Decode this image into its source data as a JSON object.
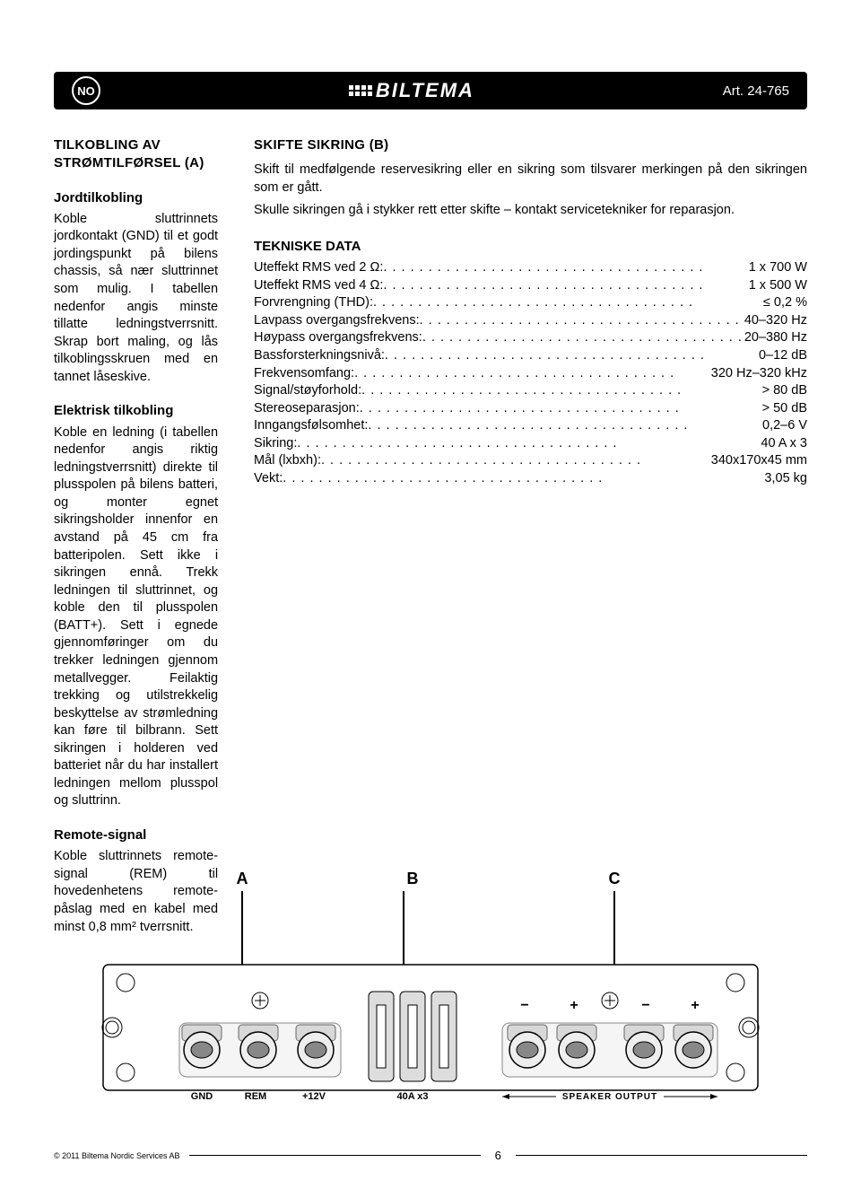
{
  "header": {
    "lang": "NO",
    "brand": "BILTEMA",
    "art": "Art. 24-765"
  },
  "left": {
    "title": "TILKOBLING AV STRØMTILFØRSEL (A)",
    "s1_heading": "Jordtilkobling",
    "s1_text": "Koble sluttrinnets jordkontakt (GND) til et godt jordingspunkt på bilens chassis, så nær sluttrinnet som mulig. I tabellen nedenfor angis minste tillatte ledningstverrsnitt. Skrap bort maling, og lås tilkoblingsskruen med en tannet låseskive.",
    "s2_heading": "Elektrisk tilkobling",
    "s2_text": "Koble en ledning (i tabellen nedenfor angis riktig ledningstverrsnitt) direkte til plusspolen på bilens batteri, og monter egnet sikringsholder innenfor en avstand på 45 cm fra batteripolen. Sett ikke i sikringen ennå. Trekk ledningen til sluttrinnet, og koble den til plusspolen (BATT+). Sett i egnede gjennomføringer om du trekker ledningen gjennom metallvegger. Feilaktig trekking og utilstrekkelig beskyttelse av strømledning kan føre til bilbrann. Sett sikringen i holderen ved batteriet når du har installert ledningen mellom plusspol og sluttrinn.",
    "s3_heading": "Remote-signal",
    "s3_text": "Koble sluttrinnets remote-signal (REM) til hovedenhetens remote-påslag med en kabel med minst 0,8 mm² tverrsnitt."
  },
  "right": {
    "title": "SKIFTE SIKRING (B)",
    "p1": "Skift til medfølgende reservesikring eller en sikring som tilsvarer merkingen på den sikringen som er gått.",
    "p2": "Skulle sikringen gå i stykker rett etter skifte – kontakt servicetekniker for reparasjon.",
    "tech_title": "TEKNISKE DATA",
    "specs": [
      {
        "label": "Uteffekt RMS ved 2 Ω:",
        "value": "1 x 700 W"
      },
      {
        "label": "Uteffekt RMS ved 4 Ω:",
        "value": "1 x 500 W"
      },
      {
        "label": "Forvrengning (THD):",
        "value": "≤ 0,2 %"
      },
      {
        "label": "Lavpass overgangsfrekvens:",
        "value": "40–320 Hz"
      },
      {
        "label": "Høypass overgangsfrekvens:",
        "value": "20–380 Hz"
      },
      {
        "label": "Bassforsterkningsnivå:",
        "value": "0–12 dB"
      },
      {
        "label": "Frekvensomfang:",
        "value": "320 Hz–320 kHz"
      },
      {
        "label": "Signal/støyforhold:",
        "value": "> 80 dB"
      },
      {
        "label": "Stereoseparasjon:",
        "value": "> 50 dB"
      },
      {
        "label": "Inngangsfølsomhet:",
        "value": "0,2–6 V"
      },
      {
        "label": "Sikring:",
        "value": "40 A x 3"
      },
      {
        "label": "Mål (lxbxh):",
        "value": "340x170x45 mm"
      },
      {
        "label": "Vekt:",
        "value": "3,05 kg"
      }
    ]
  },
  "diagram": {
    "labels": {
      "a": "A",
      "b": "B",
      "c": "C"
    },
    "terminals": {
      "gnd": "GND",
      "rem": "REM",
      "v12": "+12V",
      "fuse": "40A x3",
      "spk": "SPEAKER OUTPUT"
    },
    "polarity_minus": "−",
    "polarity_plus": "+"
  },
  "footer": {
    "copyright": "© 2011 Biltema Nordic Services AB",
    "page": "6"
  }
}
